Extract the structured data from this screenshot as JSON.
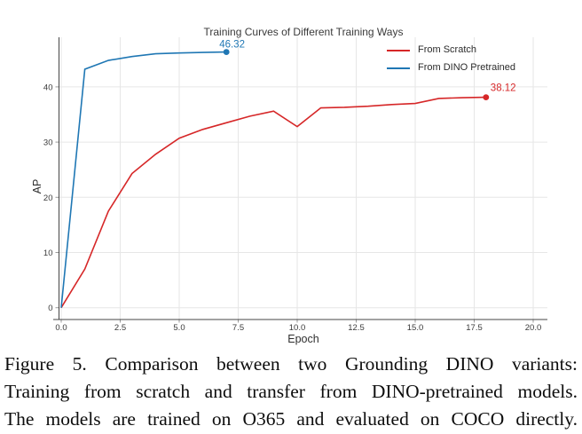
{
  "figure": {
    "title": "Training Curves of Different Training Ways",
    "xlabel": "Epoch",
    "ylabel": "AP"
  },
  "chart_data": {
    "type": "line",
    "title": "Training Curves of Different Training Ways",
    "xlabel": "Epoch",
    "ylabel": "AP",
    "xlim": [
      0,
      20.6
    ],
    "ylim": [
      -2.1,
      49
    ],
    "grid": true,
    "legend_position": "top-right",
    "x_tick_values": [
      0,
      2.5,
      5,
      7.5,
      10,
      12.5,
      15,
      17.5,
      20
    ],
    "x_tick_labels": [
      "0.0",
      "2.5",
      "5.0",
      "7.5",
      "10.0",
      "12.5",
      "15.0",
      "17.5",
      "20.0"
    ],
    "y_tick_values": [
      0,
      10,
      20,
      30,
      40
    ],
    "y_tick_labels": [
      "0",
      "10",
      "20",
      "30",
      "40"
    ],
    "series": [
      {
        "name": "From Scratch",
        "color": "#d62728",
        "x": [
          0,
          1,
          2,
          3,
          4,
          5,
          6,
          7,
          8,
          9,
          10,
          11,
          12,
          13,
          14,
          15,
          16,
          17,
          18
        ],
        "y": [
          0,
          7.0,
          17.5,
          24.3,
          27.8,
          30.7,
          32.3,
          33.5,
          34.7,
          35.6,
          32.8,
          36.2,
          36.3,
          36.5,
          36.8,
          37.0,
          37.9,
          38.05,
          38.12
        ],
        "end_label": "38.12"
      },
      {
        "name": "From DINO Pretrained",
        "color": "#1f77b4",
        "x": [
          0,
          1,
          2,
          3,
          4,
          5,
          6,
          7
        ],
        "y": [
          0,
          43.2,
          44.8,
          45.5,
          46.0,
          46.15,
          46.25,
          46.32
        ],
        "end_label": "46.32"
      }
    ]
  },
  "caption": {
    "lines": [
      "Figure 5.  Comparison between two Grounding DINO variants:",
      "Training from scratch and transfer from DINO-pretrained models.",
      "The models are trained on O365 and evaluated on COCO directly."
    ]
  }
}
